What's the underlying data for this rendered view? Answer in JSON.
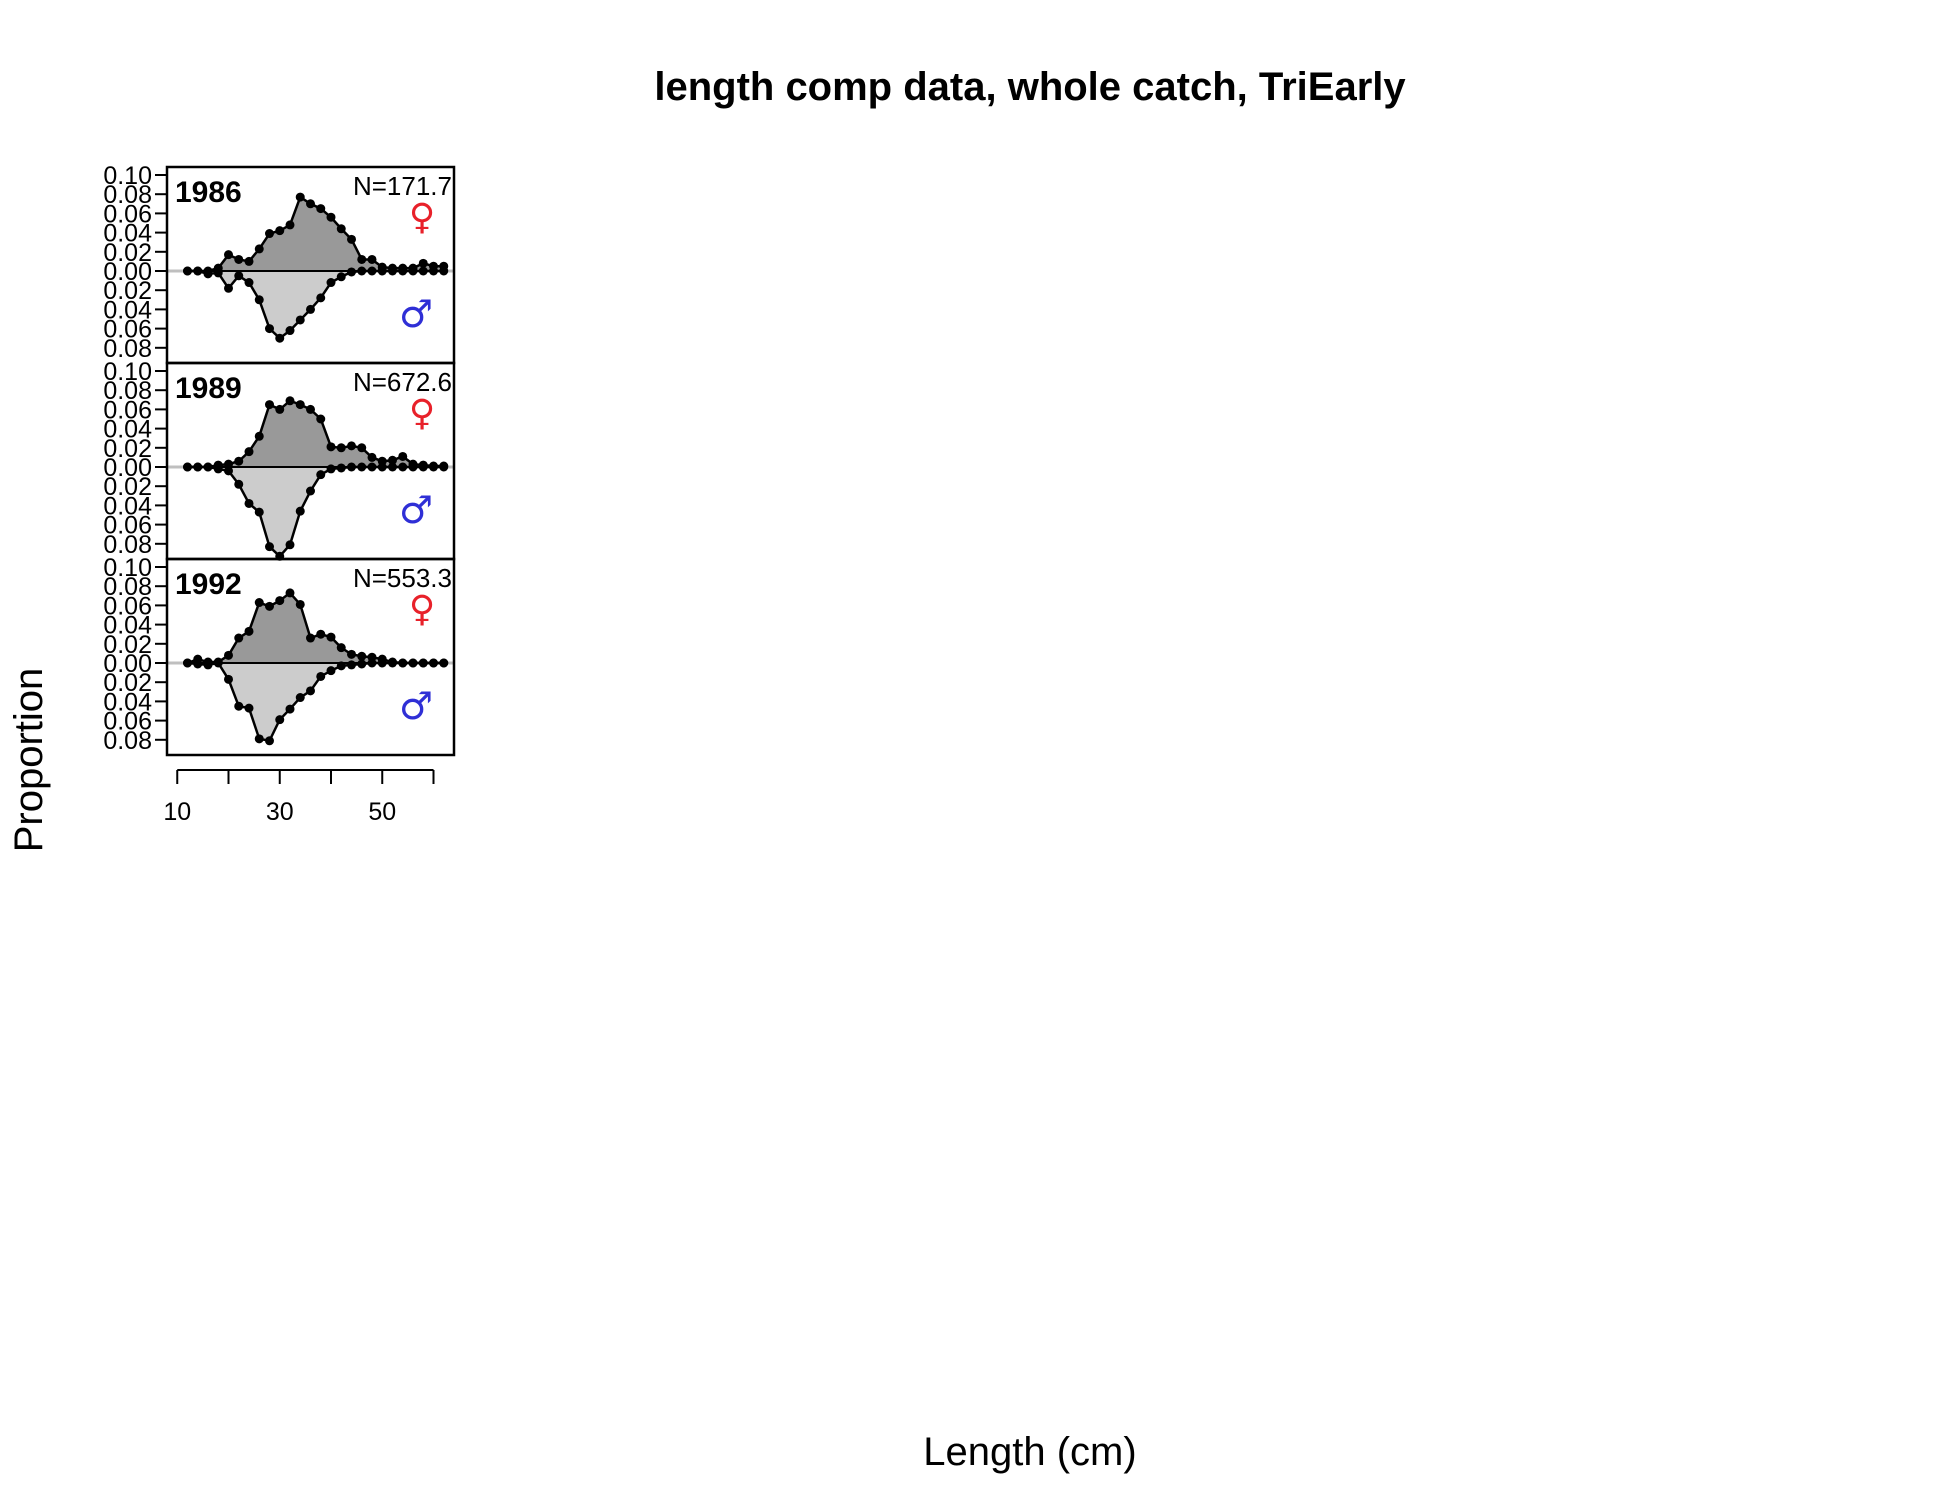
{
  "chart_data": {
    "type": "area",
    "title": "length comp data, whole catch, TriEarly",
    "xlabel": "Length (cm)",
    "ylabel": "Proportion",
    "xlim": [
      8,
      64
    ],
    "x_ticks": [
      10,
      30,
      50
    ],
    "x_tick_marks": [
      10,
      20,
      30,
      40,
      50,
      60
    ],
    "y_ticks_female": [
      "0.10",
      "0.08",
      "0.06",
      "0.04",
      "0.02",
      "0.00"
    ],
    "y_ticks_male": [
      "0.02",
      "0.04",
      "0.06",
      "0.08"
    ],
    "female_symbol": "♀",
    "male_symbol": "♂",
    "colors": {
      "female_fill": "#999999",
      "male_fill": "#cccccc",
      "female_symbol": "#e8212a",
      "male_symbol": "#2f2fd6",
      "zero_line": "#bfbfbf"
    },
    "x": [
      12,
      14,
      16,
      18,
      20,
      22,
      24,
      26,
      28,
      30,
      32,
      34,
      36,
      38,
      40,
      42,
      44,
      46,
      48,
      50,
      52,
      54,
      56,
      58,
      60,
      62
    ],
    "panels": [
      {
        "year": "1986",
        "n_label": "N=171.7",
        "female": [
          0.0,
          0.0,
          0.0,
          0.003,
          0.017,
          0.012,
          0.01,
          0.023,
          0.039,
          0.042,
          0.048,
          0.077,
          0.07,
          0.065,
          0.056,
          0.044,
          0.033,
          0.012,
          0.012,
          0.004,
          0.003,
          0.003,
          0.003,
          0.008,
          0.005,
          0.005
        ],
        "male": [
          0.0,
          0.0,
          0.003,
          0.002,
          0.018,
          0.005,
          0.012,
          0.03,
          0.06,
          0.07,
          0.062,
          0.051,
          0.04,
          0.028,
          0.012,
          0.006,
          0.001,
          0.0,
          0.0,
          0.0,
          0.0,
          0.0,
          0.0,
          0.0,
          0.0,
          0.0
        ]
      },
      {
        "year": "1989",
        "n_label": "N=672.6",
        "female": [
          0.0,
          0.0,
          0.0,
          0.002,
          0.003,
          0.006,
          0.016,
          0.032,
          0.065,
          0.06,
          0.069,
          0.065,
          0.06,
          0.05,
          0.021,
          0.02,
          0.022,
          0.02,
          0.01,
          0.006,
          0.007,
          0.011,
          0.003,
          0.002,
          0.001,
          0.001
        ],
        "male": [
          0.0,
          0.0,
          0.0,
          0.002,
          0.004,
          0.018,
          0.038,
          0.047,
          0.083,
          0.093,
          0.081,
          0.046,
          0.025,
          0.008,
          0.002,
          0.001,
          0.0,
          0.0,
          0.0,
          0.0,
          0.0,
          0.0,
          0.0,
          0.0,
          0.0,
          0.0
        ]
      },
      {
        "year": "1992",
        "n_label": "N=553.3",
        "female": [
          0.0,
          0.004,
          0.001,
          0.001,
          0.008,
          0.026,
          0.033,
          0.063,
          0.059,
          0.065,
          0.073,
          0.061,
          0.026,
          0.03,
          0.027,
          0.016,
          0.009,
          0.007,
          0.006,
          0.004,
          0.001,
          0.0,
          0.0,
          0.0,
          0.0,
          0.0
        ],
        "male": [
          0.0,
          0.001,
          0.002,
          0.0,
          0.017,
          0.045,
          0.047,
          0.079,
          0.081,
          0.059,
          0.048,
          0.036,
          0.029,
          0.014,
          0.008,
          0.003,
          0.002,
          0.001,
          0.0,
          0.0,
          0.0,
          0.0,
          0.0,
          0.0,
          0.0,
          0.0
        ]
      }
    ]
  }
}
